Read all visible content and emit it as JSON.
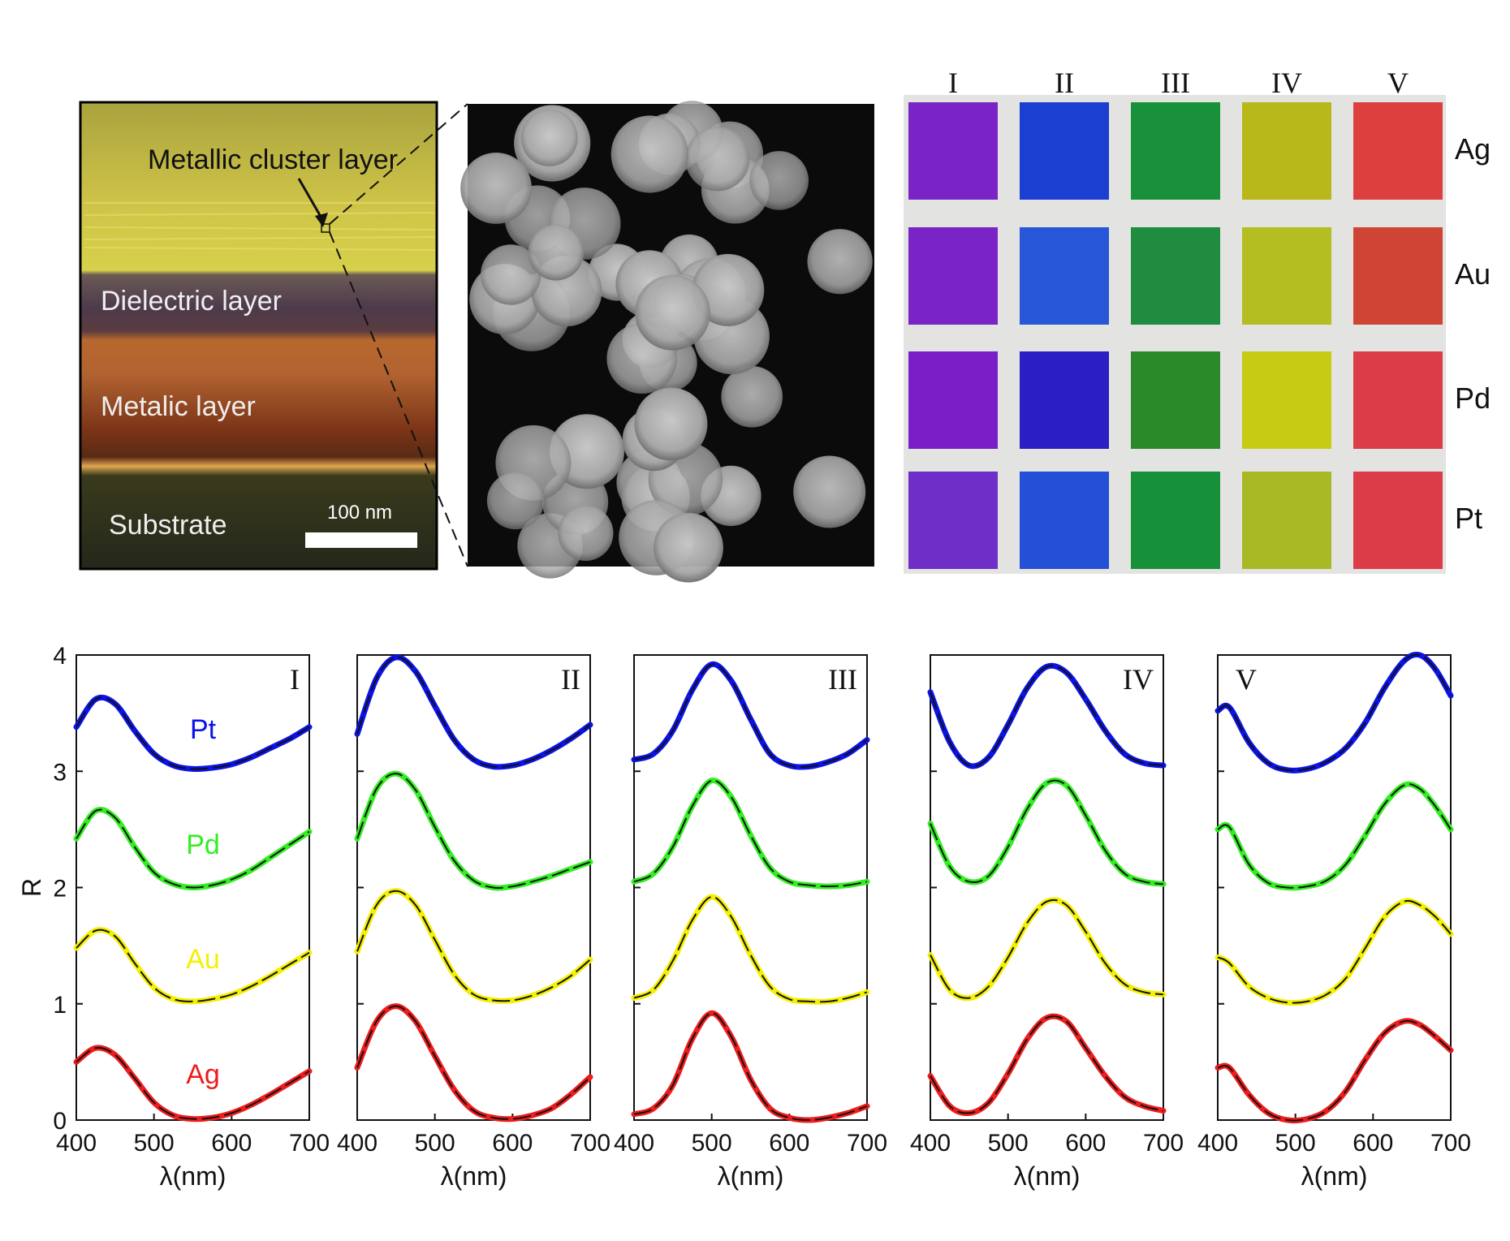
{
  "cross_section": {
    "labels": {
      "cluster": "Metallic cluster layer",
      "dielectric": "Dielectric layer",
      "metal": "Metalic layer",
      "substrate": "Substrate",
      "scale": "100 nm"
    },
    "colors": {
      "cluster": "#cfc448",
      "dielectric": "#4d3a4c",
      "metal": "#8a3f1e",
      "substrate": "#2c3218"
    }
  },
  "swatches": {
    "columns": [
      "I",
      "II",
      "III",
      "IV",
      "V"
    ],
    "rows": [
      "Ag",
      "Au",
      "Pd",
      "Pt"
    ],
    "colors": [
      [
        "#7a24c8",
        "#1b3fd0",
        "#18913a",
        "#b8b81a",
        "#dd3f3f"
      ],
      [
        "#7a24c8",
        "#2757d6",
        "#1f8c3f",
        "#b5be20",
        "#d04436"
      ],
      [
        "#7a1fc8",
        "#2a1fc4",
        "#2a8a2a",
        "#c6cb14",
        "#dc3c48"
      ],
      [
        "#6f2ec8",
        "#2450d8",
        "#17903a",
        "#a9b825",
        "#dc3c48"
      ]
    ]
  },
  "chart_data": [
    {
      "type": "line",
      "panel": "I",
      "xlabel": "λ(nm)",
      "ylabel": "R",
      "xlim": [
        400,
        700
      ],
      "ylim": [
        0,
        4
      ],
      "xticks": [
        "400",
        "500",
        "600",
        "700"
      ],
      "yticks": [
        "0",
        "1",
        "2",
        "3",
        "4"
      ],
      "series": [
        {
          "name": "Pt",
          "color": "#0b13e8",
          "x": [
            400,
            425,
            450,
            475,
            500,
            525,
            550,
            575,
            600,
            625,
            650,
            675,
            700
          ],
          "y": [
            3.38,
            3.62,
            3.58,
            3.35,
            3.15,
            3.05,
            3.02,
            3.03,
            3.06,
            3.12,
            3.2,
            3.28,
            3.38
          ]
        },
        {
          "name": "Pd",
          "color": "#33ee22",
          "x": [
            400,
            425,
            450,
            475,
            500,
            525,
            550,
            575,
            600,
            625,
            650,
            675,
            700
          ],
          "y": [
            2.42,
            2.66,
            2.6,
            2.35,
            2.13,
            2.03,
            2.0,
            2.02,
            2.07,
            2.15,
            2.26,
            2.37,
            2.48
          ]
        },
        {
          "name": "Au",
          "color": "#f4f000",
          "x": [
            400,
            425,
            450,
            475,
            500,
            525,
            550,
            575,
            600,
            625,
            650,
            675,
            700
          ],
          "y": [
            1.48,
            1.63,
            1.58,
            1.35,
            1.14,
            1.04,
            1.02,
            1.04,
            1.08,
            1.15,
            1.24,
            1.34,
            1.44
          ]
        },
        {
          "name": "Ag",
          "color": "#ee1c1c",
          "x": [
            400,
            425,
            450,
            475,
            500,
            525,
            550,
            575,
            600,
            625,
            650,
            675,
            700
          ],
          "y": [
            0.5,
            0.62,
            0.56,
            0.36,
            0.15,
            0.04,
            0.01,
            0.02,
            0.06,
            0.13,
            0.22,
            0.32,
            0.42
          ]
        }
      ]
    },
    {
      "type": "line",
      "panel": "II",
      "xlabel": "λ(nm)",
      "ylabel": "",
      "xlim": [
        400,
        700
      ],
      "ylim": [
        0,
        4
      ],
      "xticks": [
        "400",
        "500",
        "600",
        "700"
      ],
      "yticks": [],
      "series": [
        {
          "name": "",
          "color": "#0b13e8",
          "x": [
            400,
            425,
            450,
            475,
            500,
            525,
            550,
            575,
            600,
            625,
            650,
            675,
            700
          ],
          "y": [
            3.32,
            3.8,
            3.98,
            3.86,
            3.56,
            3.27,
            3.1,
            3.04,
            3.05,
            3.1,
            3.18,
            3.28,
            3.4
          ]
        },
        {
          "name": "",
          "color": "#33ee22",
          "x": [
            400,
            425,
            450,
            475,
            500,
            525,
            550,
            575,
            600,
            625,
            650,
            675,
            700
          ],
          "y": [
            2.42,
            2.85,
            2.98,
            2.84,
            2.52,
            2.23,
            2.06,
            2.0,
            2.01,
            2.05,
            2.1,
            2.16,
            2.22
          ]
        },
        {
          "name": "",
          "color": "#f4f000",
          "x": [
            400,
            425,
            450,
            475,
            500,
            525,
            550,
            575,
            600,
            625,
            650,
            675,
            700
          ],
          "y": [
            1.45,
            1.85,
            1.97,
            1.85,
            1.55,
            1.25,
            1.08,
            1.03,
            1.03,
            1.07,
            1.14,
            1.24,
            1.38
          ]
        },
        {
          "name": "",
          "color": "#ee1c1c",
          "x": [
            400,
            425,
            450,
            475,
            500,
            525,
            550,
            575,
            600,
            625,
            650,
            675,
            700
          ],
          "y": [
            0.45,
            0.85,
            0.98,
            0.85,
            0.55,
            0.26,
            0.08,
            0.02,
            0.01,
            0.04,
            0.1,
            0.22,
            0.37
          ]
        }
      ]
    },
    {
      "type": "line",
      "panel": "III",
      "xlabel": "λ(nm)",
      "ylabel": "",
      "xlim": [
        400,
        700
      ],
      "ylim": [
        0,
        4
      ],
      "xticks": [
        "400",
        "500",
        "600",
        "700"
      ],
      "yticks": [],
      "series": [
        {
          "name": "",
          "color": "#0b13e8",
          "x": [
            400,
            425,
            450,
            475,
            500,
            525,
            550,
            575,
            600,
            625,
            650,
            675,
            700
          ],
          "y": [
            3.1,
            3.15,
            3.35,
            3.7,
            3.92,
            3.78,
            3.45,
            3.15,
            3.05,
            3.04,
            3.08,
            3.15,
            3.27
          ]
        },
        {
          "name": "",
          "color": "#33ee22",
          "x": [
            400,
            425,
            450,
            475,
            500,
            525,
            550,
            575,
            600,
            625,
            650,
            675,
            700
          ],
          "y": [
            2.05,
            2.12,
            2.35,
            2.7,
            2.92,
            2.78,
            2.45,
            2.17,
            2.05,
            2.02,
            2.01,
            2.02,
            2.05
          ]
        },
        {
          "name": "",
          "color": "#f4f000",
          "x": [
            400,
            425,
            450,
            475,
            500,
            525,
            550,
            575,
            600,
            625,
            650,
            675,
            700
          ],
          "y": [
            1.05,
            1.12,
            1.37,
            1.72,
            1.92,
            1.75,
            1.42,
            1.15,
            1.04,
            1.02,
            1.02,
            1.05,
            1.1
          ]
        },
        {
          "name": "",
          "color": "#ee1c1c",
          "x": [
            400,
            425,
            450,
            475,
            500,
            525,
            550,
            575,
            600,
            625,
            650,
            675,
            700
          ],
          "y": [
            0.05,
            0.1,
            0.3,
            0.7,
            0.92,
            0.72,
            0.35,
            0.1,
            0.02,
            0.0,
            0.02,
            0.06,
            0.12
          ]
        }
      ]
    },
    {
      "type": "line",
      "panel": "IV",
      "xlabel": "λ(nm)",
      "ylabel": "",
      "xlim": [
        400,
        700
      ],
      "ylim": [
        0,
        4
      ],
      "xticks": [
        "400",
        "500",
        "600",
        "700"
      ],
      "yticks": [],
      "series": [
        {
          "name": "",
          "color": "#0b13e8",
          "x": [
            400,
            425,
            450,
            475,
            500,
            525,
            550,
            575,
            600,
            625,
            650,
            675,
            700
          ],
          "y": [
            3.68,
            3.25,
            3.05,
            3.12,
            3.4,
            3.72,
            3.9,
            3.85,
            3.62,
            3.35,
            3.15,
            3.07,
            3.05
          ]
        },
        {
          "name": "",
          "color": "#33ee22",
          "x": [
            400,
            425,
            450,
            475,
            500,
            525,
            550,
            575,
            600,
            625,
            650,
            675,
            700
          ],
          "y": [
            2.55,
            2.18,
            2.05,
            2.1,
            2.35,
            2.68,
            2.9,
            2.88,
            2.62,
            2.32,
            2.12,
            2.05,
            2.03
          ]
        },
        {
          "name": "",
          "color": "#f4f000",
          "x": [
            400,
            425,
            450,
            475,
            500,
            525,
            550,
            575,
            600,
            625,
            650,
            675,
            700
          ],
          "y": [
            1.42,
            1.12,
            1.05,
            1.15,
            1.4,
            1.7,
            1.88,
            1.85,
            1.62,
            1.35,
            1.17,
            1.1,
            1.08
          ]
        },
        {
          "name": "",
          "color": "#ee1c1c",
          "x": [
            400,
            425,
            450,
            475,
            500,
            525,
            550,
            575,
            600,
            625,
            650,
            675,
            700
          ],
          "y": [
            0.38,
            0.12,
            0.06,
            0.15,
            0.4,
            0.7,
            0.88,
            0.85,
            0.62,
            0.38,
            0.2,
            0.12,
            0.08
          ]
        }
      ]
    },
    {
      "type": "line",
      "panel": "V",
      "xlabel": "λ(nm)",
      "ylabel": "",
      "xlim": [
        400,
        700
      ],
      "ylim": [
        0,
        4
      ],
      "xticks": [
        "400",
        "500",
        "600",
        "700"
      ],
      "yticks": [],
      "series": [
        {
          "name": "",
          "color": "#0b13e8",
          "x": [
            400,
            415,
            440,
            465,
            490,
            515,
            540,
            565,
            590,
            615,
            640,
            660,
            680,
            700
          ],
          "y": [
            3.52,
            3.55,
            3.25,
            3.07,
            3.01,
            3.02,
            3.08,
            3.2,
            3.42,
            3.72,
            3.95,
            4.0,
            3.88,
            3.65
          ]
        },
        {
          "name": "",
          "color": "#33ee22",
          "x": [
            400,
            415,
            440,
            465,
            490,
            515,
            540,
            565,
            590,
            615,
            640,
            660,
            680,
            700
          ],
          "y": [
            2.5,
            2.52,
            2.2,
            2.04,
            2.0,
            2.01,
            2.06,
            2.2,
            2.45,
            2.72,
            2.88,
            2.85,
            2.7,
            2.5
          ]
        },
        {
          "name": "",
          "color": "#f4f000",
          "x": [
            400,
            415,
            440,
            465,
            490,
            515,
            540,
            565,
            590,
            615,
            640,
            660,
            680,
            700
          ],
          "y": [
            1.4,
            1.35,
            1.15,
            1.05,
            1.01,
            1.02,
            1.08,
            1.22,
            1.48,
            1.75,
            1.88,
            1.85,
            1.75,
            1.6
          ]
        },
        {
          "name": "",
          "color": "#ee1c1c",
          "x": [
            400,
            415,
            440,
            465,
            490,
            515,
            540,
            565,
            590,
            615,
            640,
            660,
            680,
            700
          ],
          "y": [
            0.45,
            0.45,
            0.22,
            0.06,
            0.0,
            0.01,
            0.08,
            0.25,
            0.52,
            0.75,
            0.85,
            0.82,
            0.72,
            0.6
          ]
        }
      ]
    }
  ]
}
